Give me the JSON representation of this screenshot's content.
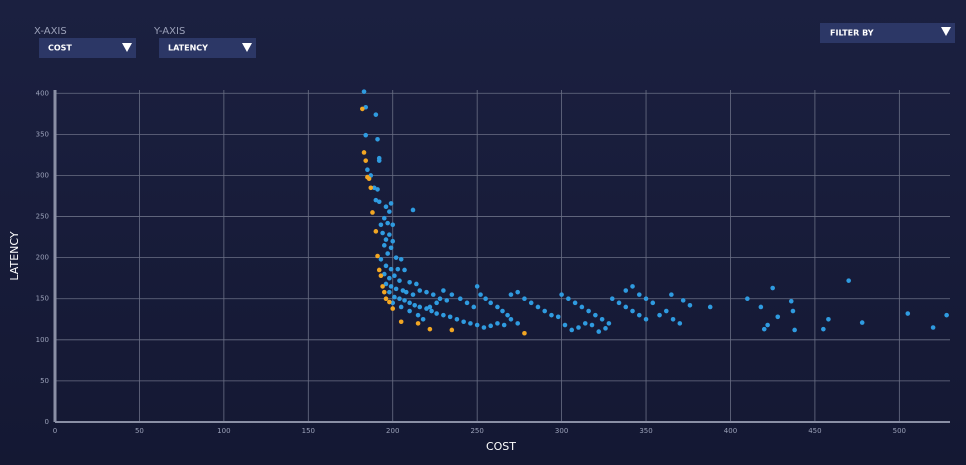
{
  "controls": {
    "x_axis_label": "X-AXIS",
    "x_axis_value": "COST",
    "y_axis_label": "Y-AXIS",
    "y_axis_value": "LATENCY",
    "filter": "FILTER BY"
  },
  "chart_data": {
    "type": "scatter",
    "xlabel": "COST",
    "ylabel": "LATENCY",
    "xlim": [
      0,
      530
    ],
    "ylim": [
      0,
      404
    ],
    "xticks": [
      0,
      50,
      100,
      150,
      200,
      250,
      300,
      350,
      400,
      450,
      500
    ],
    "yticks": [
      0,
      50,
      100,
      150,
      200,
      250,
      300,
      350,
      400
    ],
    "grid": true,
    "series": [
      {
        "color": "#2f9be0",
        "x": [
          183,
          184,
          190,
          191,
          184,
          192,
          192,
          185,
          187,
          189,
          191,
          190,
          192,
          196,
          199,
          198,
          212,
          195,
          197,
          193,
          200,
          194,
          198,
          196,
          200,
          195,
          199,
          197,
          202,
          205,
          193,
          196,
          199,
          203,
          207,
          195,
          198,
          201,
          204,
          210,
          214,
          196,
          199,
          202,
          206,
          208,
          212,
          216,
          220,
          224,
          228,
          232,
          198,
          201,
          204,
          207,
          210,
          213,
          216,
          220,
          223,
          226,
          230,
          234,
          238,
          242,
          200,
          205,
          210,
          215,
          218,
          222,
          226,
          230,
          235,
          240,
          244,
          248,
          250,
          252,
          255,
          258,
          262,
          265,
          268,
          270,
          274,
          246,
          250,
          254,
          258,
          262,
          266,
          270,
          274,
          278,
          282,
          286,
          290,
          294,
          298,
          300,
          304,
          308,
          312,
          316,
          320,
          324,
          328,
          302,
          306,
          310,
          314,
          318,
          322,
          326,
          330,
          334,
          338,
          342,
          346,
          350,
          338,
          342,
          346,
          350,
          354,
          358,
          362,
          366,
          370,
          365,
          372,
          376,
          388,
          410,
          418,
          422,
          420,
          425,
          428,
          436,
          437,
          438,
          455,
          458,
          470,
          478,
          505,
          520,
          528
        ],
        "values": [
          402,
          383,
          374,
          344,
          349,
          321,
          318,
          307,
          300,
          285,
          283,
          270,
          268,
          262,
          266,
          256,
          258,
          248,
          242,
          240,
          240,
          230,
          228,
          222,
          220,
          215,
          212,
          205,
          200,
          198,
          198,
          190,
          186,
          186,
          185,
          180,
          175,
          178,
          172,
          170,
          168,
          168,
          165,
          162,
          160,
          158,
          155,
          160,
          158,
          155,
          150,
          148,
          158,
          152,
          150,
          148,
          145,
          142,
          140,
          138,
          135,
          132,
          130,
          128,
          125,
          122,
          145,
          140,
          135,
          130,
          125,
          140,
          145,
          160,
          155,
          150,
          145,
          140,
          165,
          155,
          150,
          145,
          140,
          135,
          130,
          125,
          120,
          120,
          118,
          115,
          117,
          120,
          118,
          155,
          158,
          150,
          145,
          140,
          135,
          130,
          128,
          155,
          150,
          145,
          140,
          135,
          130,
          125,
          120,
          118,
          112,
          115,
          120,
          118,
          110,
          114,
          150,
          145,
          140,
          135,
          130,
          125,
          160,
          165,
          155,
          150,
          145,
          130,
          135,
          125,
          120,
          155,
          148,
          142,
          140,
          150,
          140,
          118,
          113,
          163,
          128,
          147,
          135,
          112,
          113,
          125,
          172,
          121,
          132,
          115,
          130
        ]
      },
      {
        "color": "#f2a623",
        "x": [
          182,
          183,
          184,
          185,
          186,
          187,
          188,
          190,
          191,
          192,
          193,
          194,
          195,
          196,
          198,
          200,
          205,
          215,
          222,
          235,
          278
        ],
        "values": [
          381,
          328,
          318,
          298,
          296,
          285,
          255,
          232,
          202,
          185,
          178,
          165,
          158,
          150,
          146,
          138,
          122,
          120,
          113,
          112,
          108
        ]
      }
    ]
  }
}
